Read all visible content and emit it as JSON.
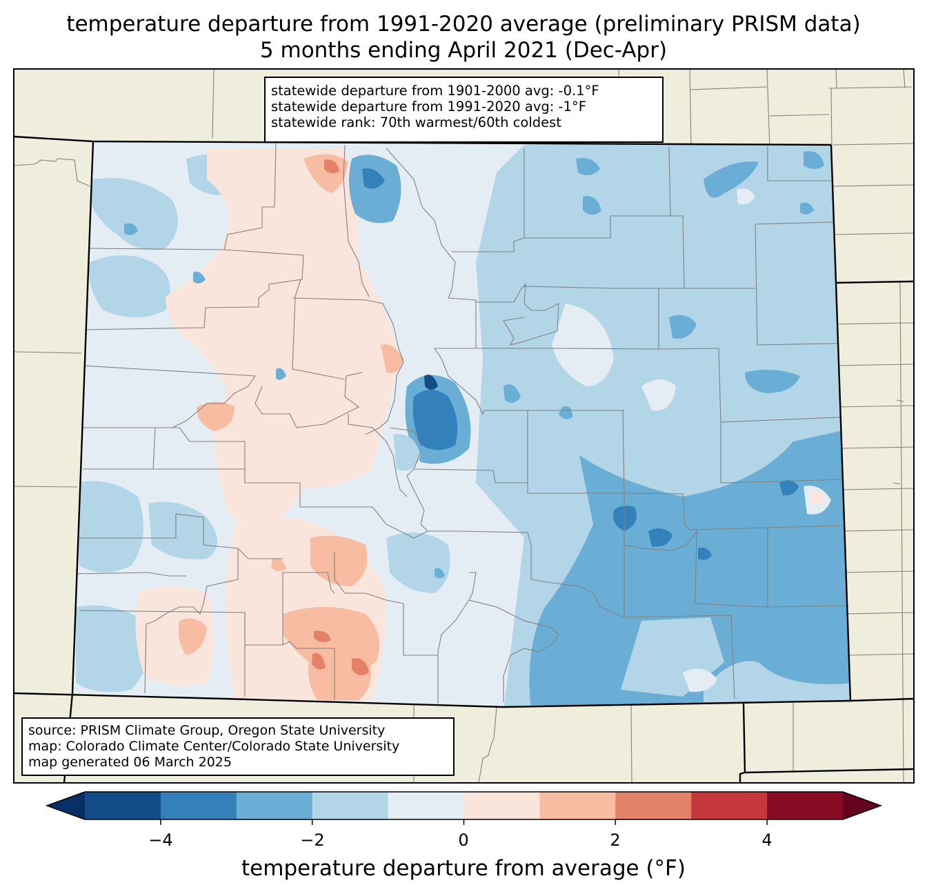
{
  "title": {
    "line1": "temperature departure from 1991-2020 average (preliminary PRISM data)",
    "line2": "5 months ending April 2021 (Dec-Apr)"
  },
  "stats": {
    "line1": "statewide departure from 1901-2000 avg: -0.1°F",
    "line2": "statewide departure from 1991-2020 avg: -1°F",
    "line3": "statewide rank: 70th warmest/60th coldest"
  },
  "source": {
    "line1": "source: PRISM Climate Group, Oregon State University",
    "line2": "map: Colorado Climate Center/Colorado State University",
    "line3": "map generated 06 March 2025"
  },
  "colorbar": {
    "label": "temperature departure from average (°F)",
    "ticks": [
      "−4",
      "−2",
      "0",
      "2",
      "4"
    ],
    "bins": [
      {
        "min": -5,
        "max": -4,
        "color": "#134b87"
      },
      {
        "min": -4,
        "max": -3,
        "color": "#3480ba"
      },
      {
        "min": -3,
        "max": -2,
        "color": "#6baed5"
      },
      {
        "min": -2,
        "max": -1,
        "color": "#b2d5e7"
      },
      {
        "min": -1,
        "max": 0,
        "color": "#e4edf4"
      },
      {
        "min": 0,
        "max": 1,
        "color": "#f9e5dc"
      },
      {
        "min": 1,
        "max": 2,
        "color": "#f8bca3"
      },
      {
        "min": 2,
        "max": 3,
        "color": "#e38169"
      },
      {
        "min": 3,
        "max": 4,
        "color": "#c4383b"
      },
      {
        "min": 4,
        "max": 5,
        "color": "#870b23"
      }
    ],
    "under_color": "#073066",
    "over_color": "#66001f"
  },
  "colors": {
    "land": "#efeddc",
    "state_border": "#000000",
    "county_border": "#808080"
  }
}
